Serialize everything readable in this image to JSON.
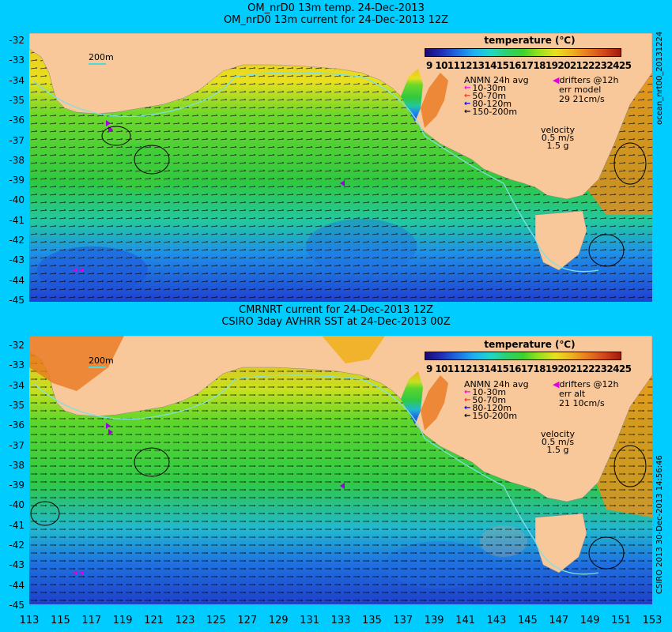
{
  "top_panel": {
    "title_line1": "OM_nrD0 13m temp. 24-Dec-2013",
    "title_line2": "OM_nrD0 13m current for 24-Dec-2013 12Z",
    "side_label": "ocean_nrt00_20131224",
    "colorbar_title": "temperature (℃)",
    "colorbar_ticks": "9 10111213141516171819202122232425",
    "avg_label": "ANMN 24h avg",
    "drifter_label": "drifters @12h",
    "err_label": "err model",
    "err_value": "29 21cm/s",
    "velocity_label": "velocity",
    "velocity_value": "0.5 m/s",
    "velocity_scale": "1.5 g",
    "depth_ranges": [
      "10-30m",
      "50-70m",
      "80-120m",
      "150-200m"
    ],
    "scale_label": "200m"
  },
  "bottom_panel": {
    "title_line1": "CMRNRT current for 24-Dec-2013 12Z",
    "title_line2": "CSIRO 3day AVHRR SST at 24-Dec-2013 00Z",
    "side_label": "CSIRO 2013   30-Dec-2013 14:56:46",
    "colorbar_title": "temperature (℃)",
    "colorbar_ticks": "9 10111213141516171819202122232425",
    "avg_label": "ANMN 24h avg",
    "drifter_label": "drifters @12h",
    "err_label": "err alt",
    "err_value": "21 10cm/s",
    "velocity_label": "velocity",
    "velocity_value": "0.5 m/s",
    "velocity_scale": "1.5 g",
    "depth_ranges": [
      "10-30m",
      "50-70m",
      "80-120m",
      "150-200m"
    ],
    "scale_label": "200m"
  },
  "y_ticks": [
    "-32",
    "-33",
    "-34",
    "-35",
    "-36",
    "-37",
    "-38",
    "-39",
    "-40",
    "-41",
    "-42",
    "-43",
    "-44",
    "-45"
  ],
  "x_ticks": [
    "113",
    "115",
    "117",
    "119",
    "121",
    "123",
    "125",
    "127",
    "129",
    "131",
    "133",
    "135",
    "137",
    "139",
    "141",
    "143",
    "145",
    "147",
    "149",
    "151",
    "153"
  ],
  "colors": {
    "background": "#00ccff",
    "land": "#f8c89a",
    "depth_10_30": "#ff00ff",
    "depth_50_70": "#ff3030",
    "depth_80_120": "#0000ff",
    "depth_150_200": "#000000",
    "drifter": "#e000e0",
    "isobath": "#7fe0e0"
  },
  "icons": [
    "drifter-triangle-icon",
    "depth-arrow-icon"
  ]
}
